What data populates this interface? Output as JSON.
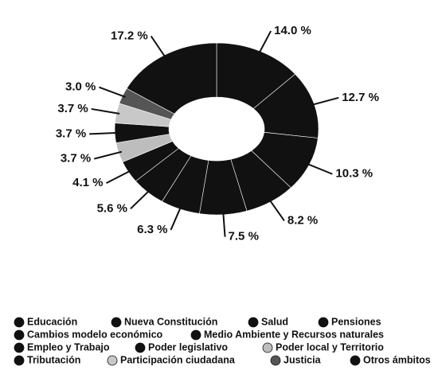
{
  "chart_data": {
    "type": "pie",
    "donut": true,
    "categories": [
      "Educación",
      "Nueva Constitución",
      "Salud",
      "Pensiones",
      "Cambios modelo económico",
      "Medio Ambiente y Recursos naturales",
      "Empleo y Trabajo",
      "Poder legislativo",
      "Poder local y Territorio",
      "Tributación",
      "Participación ciudadana",
      "Justicia",
      "Otros ámbitos"
    ],
    "values": [
      14.0,
      12.7,
      10.3,
      8.2,
      7.5,
      6.3,
      5.6,
      4.1,
      3.7,
      3.7,
      3.7,
      3.0,
      17.2
    ],
    "value_labels": [
      "14.0 %",
      "12.7 %",
      "10.3 %",
      "8.2 %",
      "7.5 %",
      "6.3 %",
      "5.6 %",
      "4.1 %",
      "3.7 %",
      "3.7 %",
      "3.7 %",
      "3.0 %",
      "17.2 %"
    ],
    "colors": [
      "#111111",
      "#111111",
      "#111111",
      "#111111",
      "#111111",
      "#111111",
      "#111111",
      "#111111",
      "#bdbdbd",
      "#111111",
      "#c8c8c8",
      "#555555",
      "#111111"
    ]
  }
}
